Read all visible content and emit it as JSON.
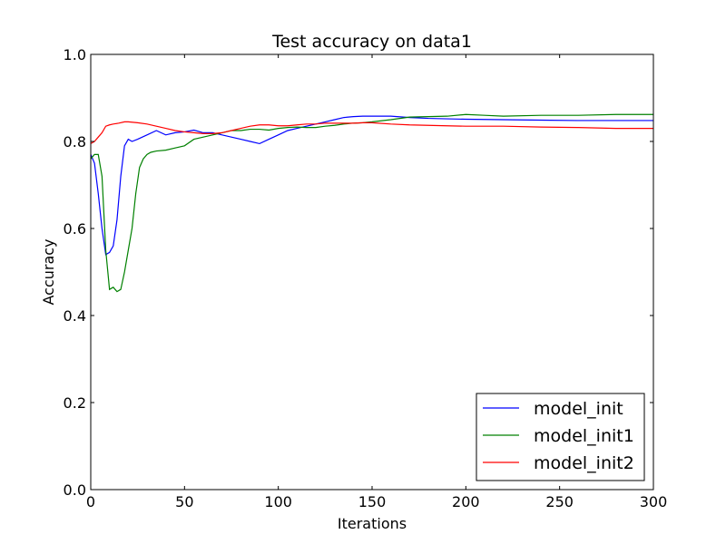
{
  "chart_data": {
    "type": "line",
    "title": "Test accuracy on data1",
    "xlabel": "Iterations",
    "ylabel": "Accuracy",
    "xlim": [
      0,
      300
    ],
    "ylim": [
      0.0,
      1.0
    ],
    "xticks": [
      0,
      50,
      100,
      150,
      200,
      250,
      300
    ],
    "yticks": [
      0.0,
      0.2,
      0.4,
      0.6,
      0.8,
      1.0
    ],
    "xtick_labels": [
      "0",
      "50",
      "100",
      "150",
      "200",
      "250",
      "300"
    ],
    "ytick_labels": [
      "0.0",
      "0.2",
      "0.4",
      "0.6",
      "0.8",
      "1.0"
    ],
    "grid": false,
    "legend_position": "lower-right",
    "series": [
      {
        "name": "model_init",
        "color": "#0000ff",
        "x": [
          0,
          2,
          4,
          6,
          8,
          10,
          12,
          14,
          16,
          18,
          20,
          22,
          25,
          30,
          35,
          40,
          45,
          50,
          55,
          60,
          65,
          70,
          75,
          80,
          85,
          90,
          95,
          100,
          105,
          110,
          115,
          120,
          125,
          130,
          135,
          140,
          145,
          150,
          160,
          170,
          180,
          190,
          200,
          220,
          240,
          260,
          280,
          300
        ],
        "y": [
          0.77,
          0.75,
          0.68,
          0.6,
          0.54,
          0.545,
          0.56,
          0.62,
          0.72,
          0.79,
          0.805,
          0.8,
          0.805,
          0.815,
          0.825,
          0.815,
          0.82,
          0.822,
          0.826,
          0.82,
          0.82,
          0.815,
          0.81,
          0.805,
          0.8,
          0.795,
          0.805,
          0.815,
          0.825,
          0.83,
          0.835,
          0.84,
          0.845,
          0.85,
          0.855,
          0.857,
          0.858,
          0.858,
          0.858,
          0.855,
          0.853,
          0.852,
          0.851,
          0.85,
          0.849,
          0.848,
          0.848,
          0.848
        ]
      },
      {
        "name": "model_init1",
        "color": "#008000",
        "x": [
          0,
          2,
          4,
          6,
          8,
          10,
          12,
          14,
          16,
          18,
          20,
          22,
          24,
          26,
          28,
          30,
          32,
          35,
          40,
          45,
          50,
          55,
          60,
          65,
          70,
          75,
          80,
          85,
          90,
          95,
          100,
          105,
          110,
          115,
          120,
          125,
          130,
          135,
          140,
          145,
          150,
          160,
          170,
          180,
          190,
          200,
          210,
          220,
          240,
          260,
          280,
          300
        ],
        "y": [
          0.76,
          0.77,
          0.77,
          0.72,
          0.55,
          0.46,
          0.465,
          0.455,
          0.46,
          0.5,
          0.55,
          0.6,
          0.68,
          0.74,
          0.76,
          0.77,
          0.775,
          0.778,
          0.78,
          0.785,
          0.79,
          0.805,
          0.81,
          0.815,
          0.82,
          0.825,
          0.825,
          0.828,
          0.828,
          0.826,
          0.83,
          0.832,
          0.833,
          0.832,
          0.832,
          0.835,
          0.837,
          0.84,
          0.842,
          0.843,
          0.845,
          0.85,
          0.856,
          0.857,
          0.858,
          0.862,
          0.86,
          0.858,
          0.86,
          0.86,
          0.862,
          0.862
        ]
      },
      {
        "name": "model_init2",
        "color": "#ff0000",
        "x": [
          0,
          2,
          4,
          6,
          8,
          10,
          12,
          15,
          18,
          20,
          25,
          30,
          35,
          40,
          45,
          50,
          55,
          60,
          65,
          70,
          75,
          80,
          85,
          90,
          95,
          100,
          105,
          110,
          115,
          120,
          125,
          130,
          135,
          140,
          145,
          150,
          160,
          170,
          180,
          190,
          200,
          220,
          240,
          260,
          280,
          300
        ],
        "y": [
          0.795,
          0.8,
          0.81,
          0.82,
          0.835,
          0.838,
          0.84,
          0.842,
          0.845,
          0.845,
          0.843,
          0.84,
          0.835,
          0.83,
          0.825,
          0.822,
          0.82,
          0.818,
          0.818,
          0.82,
          0.825,
          0.83,
          0.835,
          0.838,
          0.838,
          0.836,
          0.836,
          0.838,
          0.84,
          0.84,
          0.842,
          0.842,
          0.842,
          0.842,
          0.843,
          0.843,
          0.84,
          0.838,
          0.837,
          0.836,
          0.835,
          0.835,
          0.833,
          0.832,
          0.83,
          0.83
        ]
      }
    ]
  }
}
